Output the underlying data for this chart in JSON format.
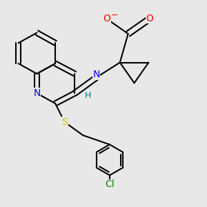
{
  "bg_color": "#e8e8e8",
  "bond_color": "#000000",
  "bond_width": 1.5,
  "atom_colors": {
    "O": "#ff0000",
    "N": "#0000ff",
    "S": "#cccc00",
    "Cl": "#008800",
    "C": "#000000",
    "H": "#008080"
  },
  "font_size_atom": 10,
  "font_size_small": 9,
  "dbo": 0.012
}
